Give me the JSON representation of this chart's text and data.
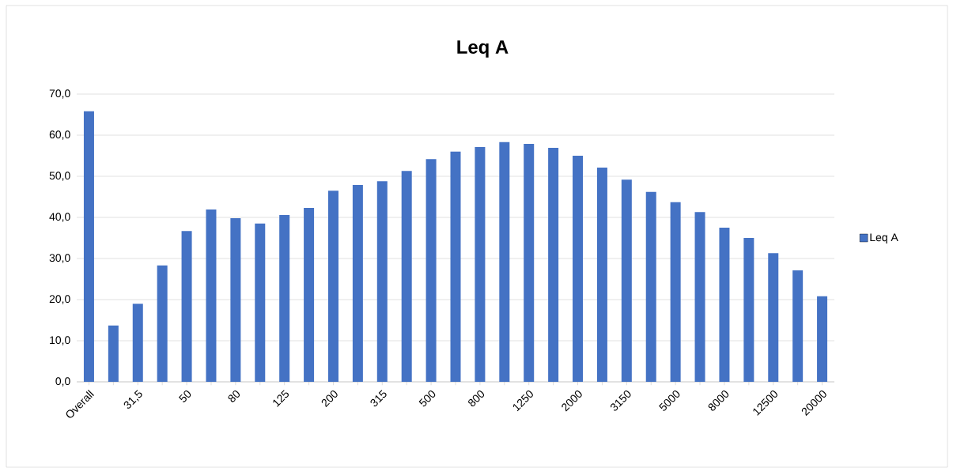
{
  "chart_data": {
    "type": "bar",
    "title": "Leq A",
    "categories": [
      "Overall",
      null,
      "31,5",
      null,
      "50",
      null,
      "80",
      null,
      "125",
      null,
      "200",
      null,
      "315",
      null,
      "500",
      null,
      "800",
      null,
      "1250",
      null,
      "2000",
      null,
      "3150",
      null,
      "5000",
      null,
      "8000",
      null,
      "12500",
      null,
      "20000"
    ],
    "series": [
      {
        "name": "Leq A",
        "color": "#4472c4",
        "values": [
          65.8,
          13.7,
          19.0,
          28.3,
          36.7,
          41.9,
          39.8,
          38.5,
          40.6,
          42.3,
          46.5,
          47.9,
          48.8,
          51.3,
          54.2,
          56.0,
          57.1,
          58.3,
          57.9,
          56.9,
          55.0,
          52.1,
          49.2,
          46.2,
          43.7,
          41.3,
          37.5,
          35.0,
          31.3,
          27.1,
          20.8
        ]
      }
    ],
    "ylim": [
      0,
      70
    ],
    "yticks": [
      {
        "value": 0,
        "label": "0,0"
      },
      {
        "value": 10,
        "label": "10,0"
      },
      {
        "value": 20,
        "label": "20,0"
      },
      {
        "value": 30,
        "label": "30,0"
      },
      {
        "value": 40,
        "label": "40,0"
      },
      {
        "value": 50,
        "label": "50,0"
      },
      {
        "value": 60,
        "label": "60,0"
      },
      {
        "value": 70,
        "label": "70,0"
      }
    ],
    "grid": "y",
    "legend": "right"
  }
}
